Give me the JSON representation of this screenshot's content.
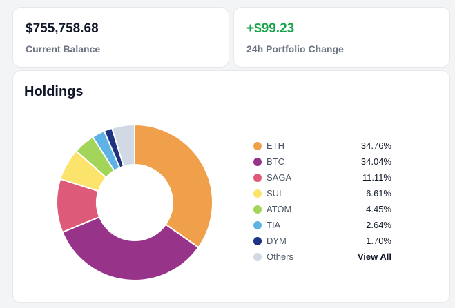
{
  "balance": {
    "value": "$755,758.68",
    "label": "Current Balance"
  },
  "change": {
    "value": "+$99.23",
    "label": "24h Portfolio Change",
    "color": "#16a34a"
  },
  "holdings": {
    "title": "Holdings",
    "view_all_label": "View All",
    "items": [
      {
        "name": "ETH",
        "percent": "34.76%",
        "color": "#f0a04b"
      },
      {
        "name": "BTC",
        "percent": "34.04%",
        "color": "#98338a"
      },
      {
        "name": "SAGA",
        "percent": "11.11%",
        "color": "#dd5a78"
      },
      {
        "name": "SUI",
        "percent": "6.61%",
        "color": "#fbe36c"
      },
      {
        "name": "ATOM",
        "percent": "4.45%",
        "color": "#a3d55a"
      },
      {
        "name": "TIA",
        "percent": "2.64%",
        "color": "#5eb3e4"
      },
      {
        "name": "DYM",
        "percent": "1.70%",
        "color": "#1e3382"
      },
      {
        "name": "Others",
        "percent": "View All",
        "color": "#d1d9e4"
      }
    ]
  },
  "chart_data": {
    "type": "pie",
    "donut": true,
    "categories": [
      "ETH",
      "BTC",
      "SAGA",
      "SUI",
      "ATOM",
      "TIA",
      "DYM",
      "Others"
    ],
    "values": [
      34.76,
      34.04,
      11.11,
      6.61,
      4.45,
      2.64,
      1.7,
      4.69
    ],
    "colors": [
      "#f0a04b",
      "#98338a",
      "#dd5a78",
      "#fbe36c",
      "#a3d55a",
      "#5eb3e4",
      "#1e3382",
      "#d1d9e4"
    ]
  }
}
